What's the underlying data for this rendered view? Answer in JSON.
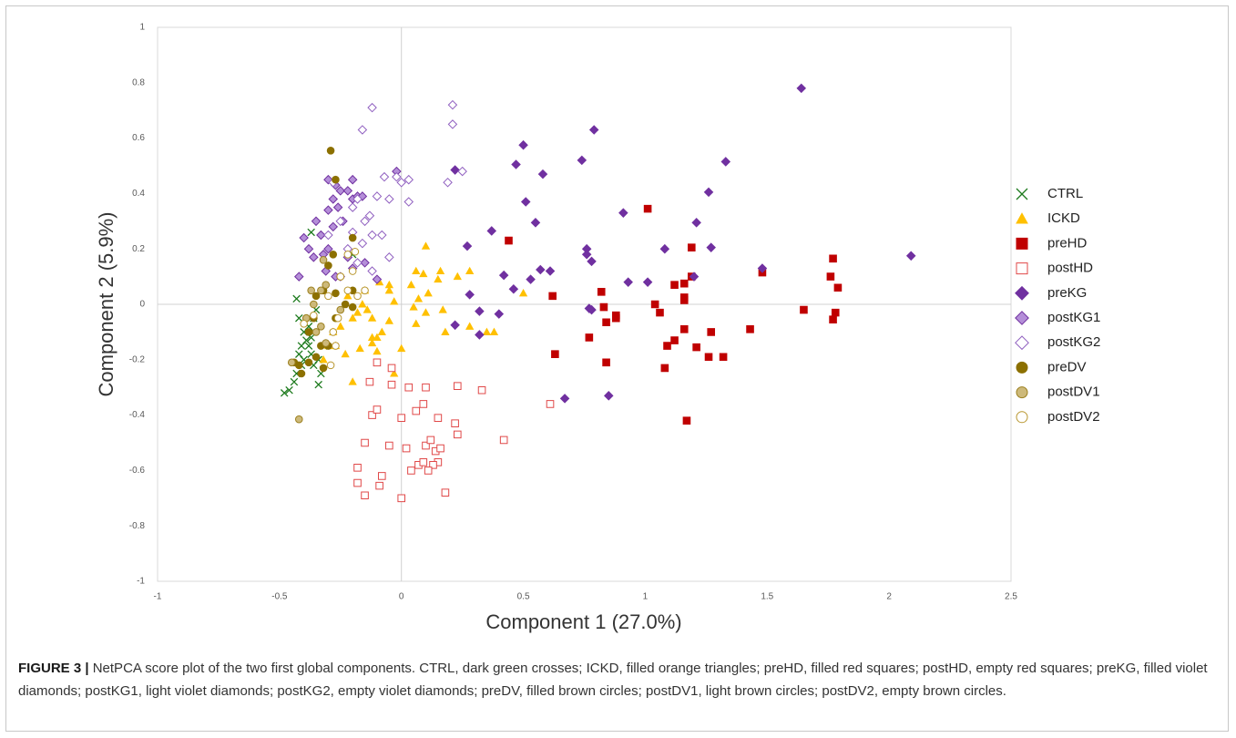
{
  "chart_data": {
    "type": "scatter",
    "xlabel": "Component 1 (27.0%)",
    "ylabel": "Component 2 (5.9%)",
    "xlim": [
      -1,
      2.5
    ],
    "ylim": [
      -1,
      1
    ],
    "xticks": [
      -1,
      -0.5,
      0,
      0.5,
      1,
      1.5,
      2,
      2.5
    ],
    "yticks": [
      -1,
      -0.8,
      -0.6,
      -0.4,
      -0.2,
      0,
      0.2,
      0.4,
      0.6,
      0.8,
      1
    ],
    "series": [
      {
        "name": "CTRL",
        "marker": "x",
        "color": "#1e7b1e",
        "fill": null,
        "x": [
          -0.48,
          -0.46,
          -0.44,
          -0.43,
          -0.41,
          -0.4,
          -0.42,
          -0.38,
          -0.37,
          -0.4,
          -0.38,
          -0.36,
          -0.35,
          -0.42,
          -0.43,
          -0.34,
          -0.33,
          -0.34,
          -0.36,
          -0.37,
          -0.39,
          -0.41,
          -0.37,
          -0.2,
          -0.36,
          -0.32
        ],
        "y": [
          -0.32,
          -0.31,
          -0.28,
          -0.25,
          -0.22,
          -0.2,
          -0.18,
          -0.15,
          -0.12,
          -0.1,
          -0.08,
          -0.05,
          -0.02,
          -0.05,
          0.02,
          -0.2,
          -0.25,
          -0.29,
          -0.22,
          -0.18,
          -0.13,
          -0.15,
          0.26,
          0.18,
          -0.1,
          -0.15
        ]
      },
      {
        "name": "ICKD",
        "marker": "triangle",
        "color": "#ffc000",
        "fill": "#ffc000",
        "x": [
          0.1,
          0.28,
          0.16,
          0.06,
          0.09,
          0.04,
          0.11,
          0.07,
          0.05,
          -0.05,
          -0.09,
          -0.03,
          -0.05,
          -0.08,
          -0.12,
          -0.14,
          -0.16,
          -0.18,
          -0.2,
          -0.12,
          -0.1,
          -0.12,
          -0.17,
          -0.23,
          -0.25,
          -0.27,
          -0.3,
          -0.32,
          -0.2,
          -0.03,
          0.0,
          0.06,
          0.1,
          0.17,
          0.18,
          0.28,
          0.38,
          0.35,
          0.15,
          0.23,
          -0.05,
          -0.15,
          -0.1,
          0.5,
          -0.28,
          -0.22
        ],
        "y": [
          0.21,
          0.12,
          0.12,
          0.12,
          0.11,
          0.07,
          0.04,
          0.02,
          -0.01,
          0.07,
          0.08,
          0.01,
          -0.06,
          -0.1,
          -0.05,
          -0.02,
          0.0,
          -0.03,
          -0.05,
          -0.12,
          -0.12,
          -0.14,
          -0.16,
          -0.18,
          -0.08,
          -0.15,
          -0.15,
          -0.2,
          -0.28,
          -0.25,
          -0.16,
          -0.07,
          -0.03,
          -0.02,
          -0.1,
          -0.08,
          -0.1,
          -0.1,
          0.09,
          0.1,
          0.05,
          0.05,
          -0.17,
          0.04,
          -0.1,
          0.03
        ]
      },
      {
        "name": "preHD",
        "marker": "square",
        "color": "#c00000",
        "fill": "#c00000",
        "x": [
          0.44,
          1.01,
          0.62,
          0.82,
          0.83,
          0.84,
          0.77,
          0.63,
          0.84,
          0.88,
          0.88,
          1.04,
          1.06,
          1.12,
          1.16,
          1.19,
          1.19,
          1.16,
          1.16,
          1.16,
          1.12,
          1.09,
          1.08,
          1.21,
          1.26,
          1.27,
          1.32,
          1.43,
          1.48,
          1.17,
          1.76,
          1.77,
          1.79,
          1.78,
          1.77,
          1.65
        ],
        "y": [
          0.23,
          0.345,
          0.03,
          0.045,
          -0.01,
          -0.065,
          -0.12,
          -0.18,
          -0.21,
          -0.04,
          -0.05,
          0,
          -0.03,
          0.07,
          0.075,
          0.205,
          0.1,
          0.025,
          0.015,
          -0.09,
          -0.13,
          -0.15,
          -0.23,
          -0.155,
          -0.19,
          -0.1,
          -0.19,
          -0.09,
          0.115,
          -0.42,
          0.1,
          0.165,
          0.06,
          -0.03,
          -0.055,
          -0.02
        ]
      },
      {
        "name": "postHD",
        "marker": "square",
        "color": "#e04848",
        "fill": null,
        "x": [
          0.03,
          0.33,
          -0.1,
          -0.13,
          -0.04,
          0.0,
          0.1,
          0.09,
          0.06,
          0.15,
          -0.12,
          -0.1,
          -0.15,
          -0.05,
          -0.18,
          -0.18,
          -0.15,
          -0.09,
          -0.08,
          0.0,
          0.02,
          0.04,
          0.07,
          0.09,
          0.1,
          0.12,
          0.14,
          0.15,
          0.16,
          0.13,
          0.18,
          0.22,
          0.23,
          0.23,
          0.42,
          0.61,
          -0.04,
          0.11
        ],
        "y": [
          -0.3,
          -0.31,
          -0.21,
          -0.28,
          -0.29,
          -0.41,
          -0.3,
          -0.36,
          -0.385,
          -0.41,
          -0.4,
          -0.38,
          -0.5,
          -0.51,
          -0.59,
          -0.645,
          -0.69,
          -0.655,
          -0.62,
          -0.7,
          -0.52,
          -0.6,
          -0.58,
          -0.57,
          -0.51,
          -0.49,
          -0.53,
          -0.57,
          -0.52,
          -0.58,
          -0.68,
          -0.43,
          -0.47,
          -0.295,
          -0.49,
          -0.36,
          -0.23,
          -0.6
        ]
      },
      {
        "name": "preKG",
        "marker": "diamond",
        "color": "#7030a0",
        "fill": "#7030a0",
        "x": [
          1.64,
          1.33,
          0.79,
          0.5,
          0.47,
          0.22,
          0.58,
          0.74,
          0.51,
          0.55,
          0.27,
          0.37,
          0.42,
          0.46,
          0.53,
          0.57,
          0.61,
          0.76,
          0.76,
          0.78,
          0.91,
          1.01,
          1.08,
          1.21,
          1.26,
          1.27,
          1.48,
          2.09,
          0.93,
          1.2,
          0.28,
          0.22,
          0.32,
          0.32,
          0.4,
          0.77,
          0.78,
          0.67,
          0.85
        ],
        "y": [
          0.78,
          0.515,
          0.63,
          0.575,
          0.505,
          0.485,
          0.47,
          0.52,
          0.37,
          0.295,
          0.21,
          0.265,
          0.105,
          0.055,
          0.09,
          0.125,
          0.12,
          0.2,
          0.18,
          0.155,
          0.33,
          0.08,
          0.2,
          0.295,
          0.405,
          0.205,
          0.13,
          0.175,
          0.08,
          0.1,
          0.035,
          -0.075,
          -0.025,
          -0.11,
          -0.035,
          -0.015,
          -0.02,
          -0.34,
          -0.33
        ]
      },
      {
        "name": "postKG1",
        "marker": "diamond",
        "color": "#7030a0",
        "fill": "#b48ed8",
        "x": [
          -0.3,
          -0.27,
          -0.25,
          -0.2,
          -0.22,
          -0.28,
          -0.3,
          -0.26,
          -0.2,
          -0.18,
          -0.16,
          -0.02,
          -0.35,
          -0.4,
          -0.33,
          -0.3,
          -0.38,
          -0.42,
          -0.36,
          -0.32,
          -0.27,
          -0.22,
          -0.2,
          -0.15,
          -0.28,
          -0.24,
          -0.1,
          -0.31
        ],
        "y": [
          0.45,
          0.43,
          0.41,
          0.45,
          0.41,
          0.38,
          0.34,
          0.35,
          0.38,
          0.39,
          0.39,
          0.48,
          0.3,
          0.24,
          0.25,
          0.2,
          0.2,
          0.1,
          0.17,
          0.18,
          0.1,
          0.17,
          0.13,
          0.15,
          0.28,
          0.3,
          0.09,
          0.12
        ]
      },
      {
        "name": "postKG2",
        "marker": "diamond",
        "color": "#9060c0",
        "fill": null,
        "x": [
          -0.12,
          0.21,
          0.21,
          -0.16,
          0.0,
          0.03,
          -0.02,
          0.03,
          0.19,
          0.25,
          -0.07,
          -0.05,
          -0.1,
          -0.18,
          -0.2,
          -0.13,
          -0.15,
          -0.25,
          -0.28,
          -0.12,
          -0.2,
          -0.16,
          -0.22,
          -0.3,
          -0.05,
          -0.08,
          -0.18,
          -0.12,
          -0.25
        ],
        "y": [
          0.71,
          0.72,
          0.65,
          0.63,
          0.44,
          0.37,
          0.46,
          0.45,
          0.44,
          0.48,
          0.46,
          0.38,
          0.39,
          0.38,
          0.35,
          0.32,
          0.3,
          0.3,
          0.44,
          0.25,
          0.26,
          0.22,
          0.2,
          0.25,
          0.17,
          0.25,
          0.15,
          0.12,
          0.1
        ]
      },
      {
        "name": "preDV",
        "marker": "circle",
        "color": "#8c7000",
        "fill": "#8c7000",
        "x": [
          -0.29,
          -0.27,
          -0.2,
          -0.28,
          -0.25,
          -0.3,
          -0.32,
          -0.27,
          -0.2,
          -0.35,
          -0.36,
          -0.39,
          -0.38,
          -0.33,
          -0.35,
          -0.32,
          -0.38,
          -0.42,
          -0.44,
          -0.41,
          -0.3,
          -0.2,
          -0.27,
          -0.23
        ],
        "y": [
          0.555,
          0.45,
          0.24,
          0.18,
          0.1,
          0.14,
          0.05,
          0.04,
          0.05,
          0.03,
          -0.05,
          -0.05,
          -0.1,
          -0.15,
          -0.19,
          -0.23,
          -0.21,
          -0.22,
          -0.21,
          -0.25,
          -0.15,
          -0.01,
          -0.05,
          0.0
        ]
      },
      {
        "name": "postDV1",
        "marker": "circle",
        "color": "#9c8020",
        "fill": "#cdb97a",
        "x": [
          -0.42,
          -0.32,
          -0.37,
          -0.33,
          -0.31,
          -0.39,
          -0.35,
          -0.33,
          -0.45,
          -0.31,
          -0.25,
          -0.36
        ],
        "y": [
          -0.415,
          0.16,
          0.05,
          0.05,
          0.07,
          -0.05,
          -0.1,
          -0.08,
          -0.21,
          -0.14,
          -0.02,
          0.0
        ]
      },
      {
        "name": "postDV2",
        "marker": "circle",
        "color": "#b8962e",
        "fill": null,
        "x": [
          -0.2,
          -0.25,
          -0.22,
          -0.18,
          -0.15,
          -0.3,
          -0.26,
          -0.28,
          -0.36,
          -0.4,
          -0.29,
          -0.27,
          -0.22,
          -0.19
        ],
        "y": [
          0.12,
          0.1,
          0.05,
          0.03,
          0.05,
          0.03,
          -0.05,
          -0.1,
          -0.04,
          -0.07,
          -0.22,
          -0.15,
          0.18,
          0.19
        ]
      }
    ]
  },
  "caption": {
    "label": "FIGURE 3 |",
    "text": "NetPCA score plot of the two first global components. CTRL, dark green crosses; ICKD, filled orange triangles; preHD, filled red squares; postHD, empty red squares; preKG, filled violet diamonds; postKG1, light violet diamonds; postKG2, empty violet diamonds; preDV, filled brown circles; postDV1, light brown circles; postDV2, empty brown circles."
  }
}
